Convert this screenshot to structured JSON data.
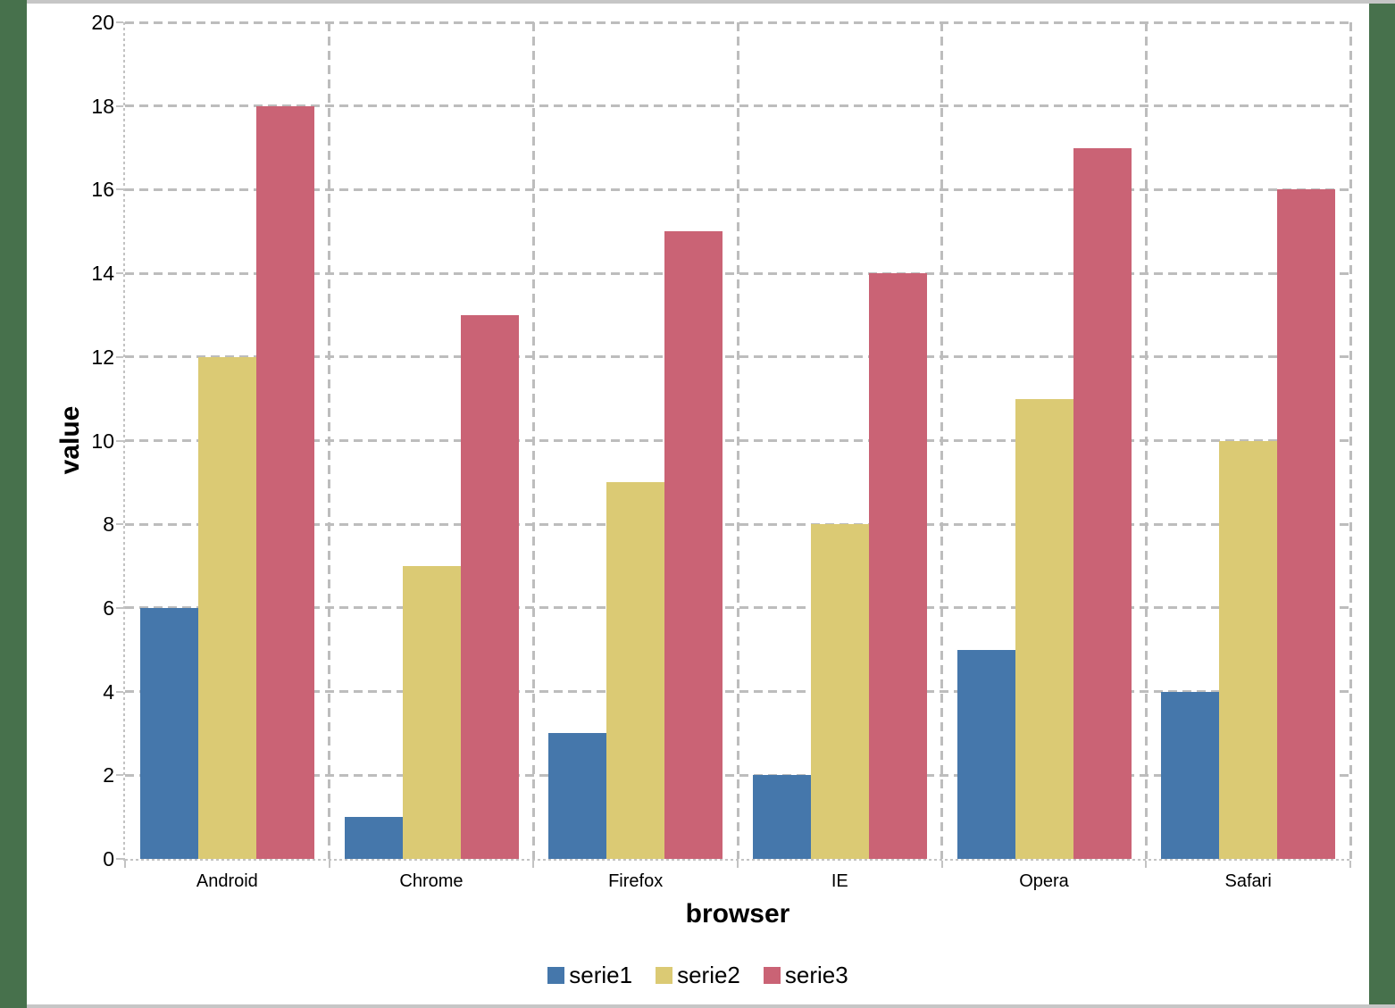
{
  "chart_data": {
    "type": "bar",
    "title": "",
    "xlabel": "browser",
    "ylabel": "value",
    "categories": [
      "Android",
      "Chrome",
      "Firefox",
      "IE",
      "Opera",
      "Safari"
    ],
    "series": [
      {
        "name": "serie1",
        "color": "#4577AB",
        "values": [
          6,
          1,
          3,
          2,
          5,
          4
        ]
      },
      {
        "name": "serie2",
        "color": "#DBCA74",
        "values": [
          12,
          7,
          9,
          8,
          11,
          10
        ]
      },
      {
        "name": "serie3",
        "color": "#CA6375",
        "values": [
          18,
          13,
          15,
          14,
          17,
          16
        ]
      }
    ],
    "ylim": [
      0,
      20
    ],
    "yticks": [
      0,
      2,
      4,
      6,
      8,
      10,
      12,
      14,
      16,
      18,
      20
    ],
    "grid": "dashed horizontal and vertical",
    "legend_position": "bottom-center"
  },
  "colors": {
    "page_background": "#47714C",
    "chart_background": "#FFFFFF",
    "gridline": "#BDBDBD",
    "axis": "#C3C3C3",
    "window_edge": "#C6C6C6",
    "text": "#000000"
  }
}
